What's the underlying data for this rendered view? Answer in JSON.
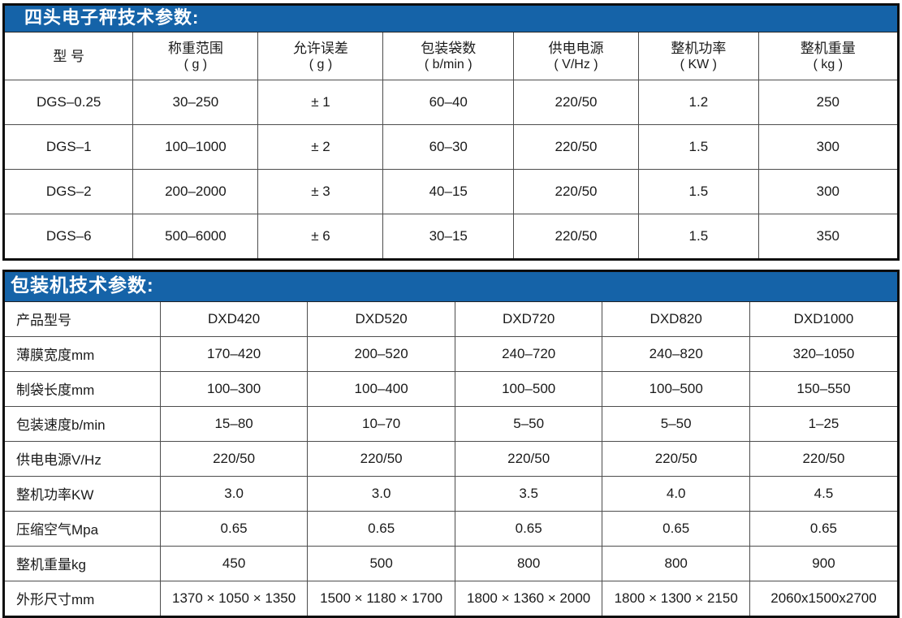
{
  "accent_color": "#1563a8",
  "border_color": "#0d0d0d",
  "scale_table": {
    "title": "四头电子秤技术参数:",
    "headers": [
      {
        "name": "型  号",
        "unit": ""
      },
      {
        "name": "称重范围",
        "unit": "( g )"
      },
      {
        "name": "允许误差",
        "unit": "( g )"
      },
      {
        "name": "包装袋数",
        "unit": "( b/min )"
      },
      {
        "name": "供电电源",
        "unit": "( V/Hz )"
      },
      {
        "name": "整机功率",
        "unit": "( KW )"
      },
      {
        "name": "整机重量",
        "unit": "( kg )"
      }
    ],
    "rows": [
      [
        "DGS–0.25",
        "30–250",
        "± 1",
        "60–40",
        "220/50",
        "1.2",
        "250"
      ],
      [
        "DGS–1",
        "100–1000",
        "± 2",
        "60–30",
        "220/50",
        "1.5",
        "300"
      ],
      [
        "DGS–2",
        "200–2000",
        "± 3",
        "40–15",
        "220/50",
        "1.5",
        "300"
      ],
      [
        "DGS–6",
        "500–6000",
        "± 6",
        "30–15",
        "220/50",
        "1.5",
        "350"
      ]
    ]
  },
  "packer_table": {
    "title": "包装机技术参数:",
    "rows": [
      {
        "label": "产品型号",
        "values": [
          "DXD420",
          "DXD520",
          "DXD720",
          "DXD820",
          "DXD1000"
        ]
      },
      {
        "label": "薄膜宽度mm",
        "values": [
          "170–420",
          "200–520",
          "240–720",
          "240–820",
          "320–1050"
        ]
      },
      {
        "label": "制袋长度mm",
        "values": [
          "100–300",
          "100–400",
          "100–500",
          "100–500",
          "150–550"
        ]
      },
      {
        "label": "包装速度b/min",
        "values": [
          "15–80",
          "10–70",
          "5–50",
          "5–50",
          "1–25"
        ]
      },
      {
        "label": "供电电源V/Hz",
        "values": [
          "220/50",
          "220/50",
          "220/50",
          "220/50",
          "220/50"
        ]
      },
      {
        "label": "整机功率KW",
        "values": [
          "3.0",
          "3.0",
          "3.5",
          "4.0",
          "4.5"
        ]
      },
      {
        "label": "压缩空气Mpa",
        "values": [
          "0.65",
          "0.65",
          "0.65",
          "0.65",
          "0.65"
        ]
      },
      {
        "label": "整机重量kg",
        "values": [
          "450",
          "500",
          "800",
          "800",
          "900"
        ]
      },
      {
        "label": "外形尺寸mm",
        "values": [
          "1370 × 1050 × 1350",
          "1500 × 1180 × 1700",
          "1800 × 1360 × 2000",
          "1800 × 1300 × 2150",
          "2060x1500x2700"
        ]
      }
    ]
  }
}
